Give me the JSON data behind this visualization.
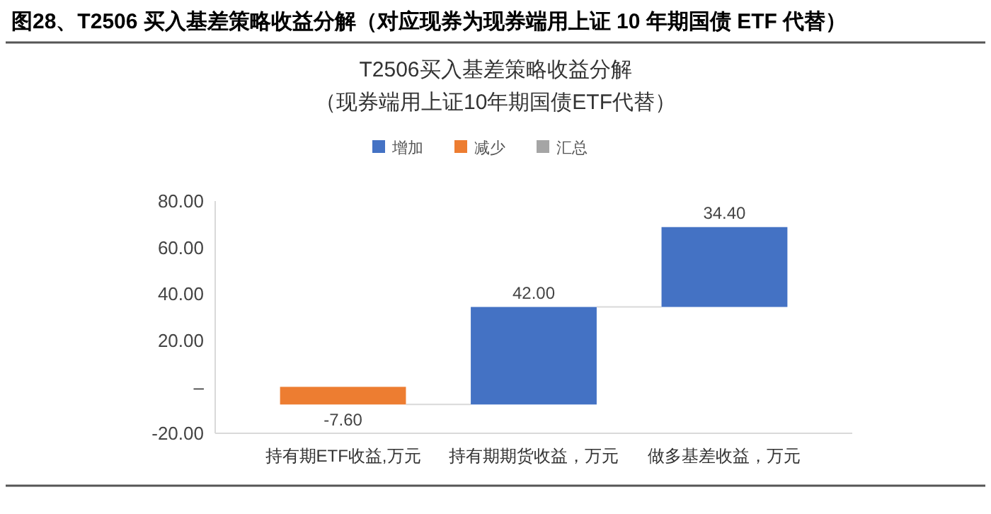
{
  "chart_data": {
    "type": "bar",
    "title": "图28、T2506 买入基差策略收益分解（对应现券为现券端用上证 10 年期国债 ETF 代替）",
    "subtitle": "T2506买入基差策略收益分解",
    "annotations": [
      "（现券端用上证10年期国债ETF代替）"
    ],
    "categories": [
      "持有期ETF收益,万元",
      "持有期期货收益，万元",
      "做多基差收益，万元"
    ],
    "series": [
      {
        "name": "增加",
        "color": "#4472c4",
        "values": [
          null,
          42,
          34.4
        ],
        "base": [
          null,
          -7.6,
          34.4
        ],
        "value_labels": [
          null,
          "42.00",
          "34.40"
        ]
      },
      {
        "name": "减少",
        "color": "#ed7d31",
        "values": [
          -7.6,
          null,
          null
        ],
        "base": [
          0,
          null,
          null
        ],
        "value_labels": [
          "-7.60",
          null,
          null
        ]
      },
      {
        "name": "汇总",
        "color": "#a5a5a5",
        "values": [
          null,
          null,
          null
        ]
      }
    ],
    "ylim": [
      -20,
      80
    ],
    "yticks": [
      {
        "value": -20,
        "label": "-20.00"
      },
      {
        "value": 0,
        "label": "–"
      },
      {
        "value": 20,
        "label": "20.00"
      },
      {
        "value": 40,
        "label": "40.00"
      },
      {
        "value": 60,
        "label": "60.00"
      },
      {
        "value": 80,
        "label": "80.00"
      }
    ],
    "legend": "top",
    "grid": false
  }
}
